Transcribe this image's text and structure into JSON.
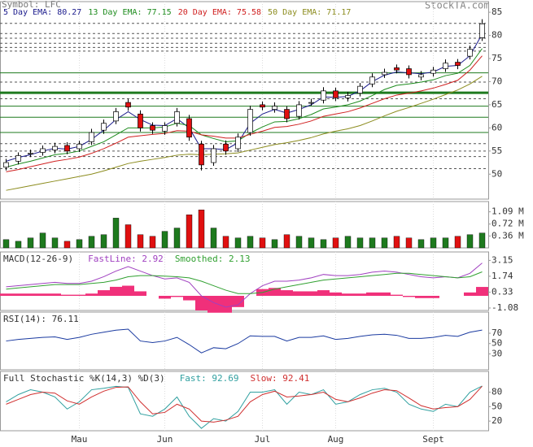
{
  "chart_data": [
    {
      "type": "candlestick",
      "title": "Symbol: LFC",
      "source": "StockTA.com",
      "open": [
        51.5,
        52.8,
        54.5,
        54.7,
        55.2,
        56.2,
        55.5,
        57,
        59.5,
        61.5,
        65.5,
        63,
        60.5,
        59.3,
        61,
        62,
        56.5,
        52.5,
        56.5,
        55.5,
        59,
        65,
        64,
        64,
        62.5,
        65.5,
        66,
        68,
        66.5,
        67.5,
        69.5,
        71.5,
        73,
        72.8,
        71,
        71.8,
        72.8,
        74.2,
        75.5,
        79.5
      ],
      "high": [
        53.3,
        54.7,
        55.3,
        56.2,
        56.8,
        56.9,
        57.2,
        59.8,
        61.8,
        64.3,
        66.2,
        63.8,
        61.2,
        61.2,
        64.3,
        62.8,
        57.2,
        56.3,
        57.3,
        58.8,
        64.8,
        65.7,
        65.5,
        64.7,
        65.8,
        66.3,
        68.8,
        68.7,
        67.8,
        69.7,
        71.8,
        72.8,
        73.7,
        73.5,
        72.3,
        73.2,
        74.8,
        74.9,
        77.8,
        83.5
      ],
      "low": [
        50.8,
        52.1,
        53.7,
        54,
        54.5,
        54.3,
        54.8,
        56.3,
        58.7,
        60.8,
        63.7,
        59.2,
        58.7,
        58.5,
        60.3,
        57.2,
        50.8,
        51.8,
        54.2,
        54.8,
        58.3,
        63.8,
        63.3,
        61.2,
        61.8,
        64.8,
        65.3,
        65.8,
        65.7,
        66.8,
        68.8,
        70.8,
        71.8,
        70.7,
        70.3,
        71.1,
        72.1,
        72.7,
        74.8,
        78.8
      ],
      "close": [
        52.5,
        54,
        54.5,
        55.5,
        56,
        55,
        56.5,
        59,
        61,
        63.5,
        64.5,
        60,
        59.5,
        60.5,
        63.5,
        58,
        52,
        55.5,
        55,
        58,
        64,
        64.5,
        64.7,
        62,
        65,
        65.5,
        68,
        66.5,
        67,
        69,
        71,
        72,
        72.5,
        71.5,
        71.5,
        72.5,
        74,
        73.5,
        77,
        82.5
      ],
      "up_color": "#ffffff",
      "down_color": "#e01010",
      "series": [
        {
          "name": "5 Day EMA: 80.27",
          "color": "#1a1a8c",
          "values": [
            52.8,
            53.6,
            54.2,
            55,
            55.6,
            55.4,
            56,
            57.5,
            59.5,
            61.8,
            63.5,
            61.8,
            60.6,
            60.5,
            62,
            60,
            55.5,
            55.5,
            55.3,
            56.8,
            61,
            63,
            64,
            63.2,
            64,
            65,
            66.7,
            66.6,
            66.8,
            68,
            70,
            71.4,
            72.1,
            71.9,
            71.7,
            72.1,
            73.3,
            73.5,
            75.6,
            80.27
          ]
        },
        {
          "name": "13 Day EMA: 77.15",
          "color": "#1e8c1e",
          "values": [
            51.5,
            52.2,
            52.8,
            53.5,
            54.2,
            54.5,
            55,
            56,
            57,
            58.5,
            60,
            60,
            60,
            60.2,
            61,
            60.5,
            58.5,
            57.7,
            57,
            57.2,
            58.9,
            60.2,
            61.3,
            61.4,
            62,
            62.9,
            64.1,
            64.5,
            65,
            65.8,
            67,
            68.3,
            69.2,
            69.5,
            69.9,
            70.4,
            71.3,
            71.8,
            73.5,
            77.15
          ]
        },
        {
          "name": "20 Day EMA: 75.58",
          "color": "#d02020",
          "values": [
            50.5,
            51,
            51.6,
            52.2,
            52.8,
            53.2,
            53.7,
            54.5,
            55.5,
            56.7,
            58,
            58.3,
            58.6,
            58.8,
            59.4,
            59.3,
            58.5,
            58.2,
            57.8,
            57.8,
            58.6,
            59.3,
            60.1,
            60.3,
            60.8,
            61.5,
            62.5,
            63,
            63.5,
            64.3,
            65.3,
            66.3,
            67.1,
            67.5,
            68,
            68.6,
            69.4,
            70.3,
            72.5,
            75.58
          ]
        },
        {
          "name": "50 Day EMA: 71.17",
          "color": "#8c8c1e",
          "values": [
            46.5,
            47,
            47.5,
            48,
            48.5,
            49,
            49.5,
            50,
            50.7,
            51.5,
            52.3,
            52.8,
            53.2,
            53.6,
            54.1,
            54.3,
            54.2,
            54.3,
            54.4,
            54.6,
            55.2,
            55.8,
            56.4,
            56.8,
            57.3,
            57.9,
            58.7,
            59.3,
            59.8,
            60.5,
            61.5,
            62.6,
            63.6,
            64.4,
            65.3,
            66.2,
            67.2,
            68.2,
            69.5,
            71.17
          ]
        }
      ],
      "dashed_levels": [
        82.6,
        80.4,
        79.4,
        78.3,
        77.4,
        76.6,
        69.9,
        66.3,
        56.6,
        55,
        53.8,
        51.2
      ],
      "solid_levels": [
        71.9,
        67.6,
        64.7,
        62.3,
        59
      ],
      "dashed_color": "#555555",
      "solid_color": "#1e7a1e",
      "ylim": [
        44.6,
        87.3
      ],
      "yticks": [
        50,
        55,
        60,
        65,
        70,
        75,
        80,
        85
      ]
    },
    {
      "type": "bar",
      "values": [
        0.25,
        0.2,
        0.3,
        0.45,
        0.3,
        0.2,
        0.25,
        0.35,
        0.4,
        0.9,
        0.7,
        0.4,
        0.35,
        0.5,
        0.6,
        1,
        1.15,
        0.6,
        0.35,
        0.3,
        0.35,
        0.3,
        0.25,
        0.4,
        0.35,
        0.3,
        0.25,
        0.3,
        0.35,
        0.3,
        0.3,
        0.3,
        0.35,
        0.3,
        0.25,
        0.3,
        0.3,
        0.35,
        0.4,
        0.45
      ],
      "up_color": "#1e7a1e",
      "down_color": "#e01010",
      "ylim": [
        0,
        1.4
      ],
      "yticks": [
        {
          "value": 1.09,
          "label": "1.09 M"
        },
        {
          "value": 0.72,
          "label": "0.72 M"
        },
        {
          "value": 0.36,
          "label": "0.36 M"
        }
      ]
    },
    {
      "type": "line",
      "title": "MACD(12-26-9)",
      "series": [
        {
          "name": "FastLine: 2.92",
          "color": "#a040c0",
          "values": [
            0.8,
            0.9,
            1,
            1.1,
            1.2,
            1.1,
            1.1,
            1.3,
            1.7,
            2.2,
            2.6,
            2.2,
            1.8,
            1.5,
            1.6,
            1.2,
            0,
            -0.6,
            -1,
            -0.8,
            0.2,
            0.9,
            1.3,
            1.3,
            1.4,
            1.6,
            1.9,
            1.8,
            1.8,
            1.9,
            2.1,
            2.2,
            2.1,
            1.9,
            1.7,
            1.6,
            1.7,
            1.6,
            2,
            2.92
          ]
        },
        {
          "name": "Smoothed: 2.13",
          "color": "#30a030",
          "values": [
            0.6,
            0.7,
            0.8,
            0.9,
            1,
            1,
            1,
            1.1,
            1.2,
            1.4,
            1.7,
            1.8,
            1.8,
            1.75,
            1.7,
            1.6,
            1.3,
            0.9,
            0.5,
            0.2,
            0.2,
            0.3,
            0.6,
            0.8,
            1,
            1.2,
            1.4,
            1.5,
            1.6,
            1.7,
            1.8,
            1.9,
            2,
            2,
            1.9,
            1.8,
            1.7,
            1.6,
            1.7,
            2.13
          ]
        }
      ],
      "histogram": {
        "color": "#f0307a",
        "values": [
          0.2,
          0.2,
          0.2,
          0.2,
          0.2,
          0.1,
          0.1,
          0.2,
          0.5,
          0.8,
          0.9,
          0.4,
          0,
          -0.25,
          -0.1,
          -0.4,
          -1.3,
          -1.5,
          -1.5,
          -1,
          0,
          0.6,
          0.7,
          0.5,
          0.4,
          0.4,
          0.5,
          0.3,
          0.2,
          0.2,
          0.3,
          0.3,
          0.1,
          -0.1,
          -0.2,
          -0.2,
          0,
          0,
          0.3,
          0.79
        ]
      },
      "ylim": [
        -1.3,
        3.9
      ],
      "yticks": [
        3.15,
        1.74,
        0.33,
        -1.08
      ]
    },
    {
      "type": "line",
      "title": "RSI(14): 76.11",
      "series": [
        {
          "color": "#1a3aa0",
          "values": [
            55,
            58,
            60,
            62,
            63,
            58,
            62,
            68,
            72,
            76,
            78,
            55,
            52,
            55,
            62,
            48,
            32,
            42,
            40,
            50,
            65,
            64,
            64,
            55,
            62,
            62,
            65,
            58,
            60,
            64,
            67,
            68,
            66,
            60,
            60,
            62,
            66,
            64,
            72,
            76.11
          ]
        }
      ],
      "ylim": [
        -0.8,
        111
      ],
      "yticks": [
        70,
        50,
        30
      ]
    },
    {
      "type": "line",
      "title": "Full Stochastic %K(14,3) %D(3)",
      "categories": [
        null,
        null,
        null,
        null,
        null,
        null,
        "Mau",
        null,
        null,
        null,
        null,
        null,
        null,
        "Jun",
        null,
        null,
        null,
        null,
        null,
        null,
        null,
        "Jul",
        null,
        null,
        null,
        null,
        null,
        "Aug",
        null,
        null,
        null,
        null,
        null,
        null,
        null,
        "Sept",
        null,
        null,
        null,
        null
      ],
      "series": [
        {
          "name": "Fast: 92.69",
          "color": "#30a0a0",
          "values": [
            60,
            75,
            85,
            80,
            70,
            45,
            60,
            85,
            88,
            92,
            90,
            35,
            30,
            45,
            70,
            30,
            5,
            25,
            20,
            40,
            80,
            80,
            85,
            55,
            80,
            75,
            85,
            55,
            60,
            75,
            85,
            88,
            80,
            55,
            45,
            40,
            55,
            50,
            80,
            92.69
          ]
        },
        {
          "name": "Slow: 92.41",
          "color": "#d03030",
          "values": [
            55,
            65,
            75,
            80,
            78,
            62,
            55,
            70,
            82,
            90,
            91,
            60,
            35,
            38,
            55,
            45,
            20,
            18,
            22,
            30,
            60,
            75,
            82,
            70,
            72,
            75,
            80,
            65,
            60,
            68,
            78,
            85,
            83,
            68,
            52,
            45,
            48,
            50,
            65,
            92.41
          ]
        }
      ],
      "ylim": [
        0,
        123
      ],
      "yticks": [
        80,
        50,
        20
      ]
    }
  ]
}
